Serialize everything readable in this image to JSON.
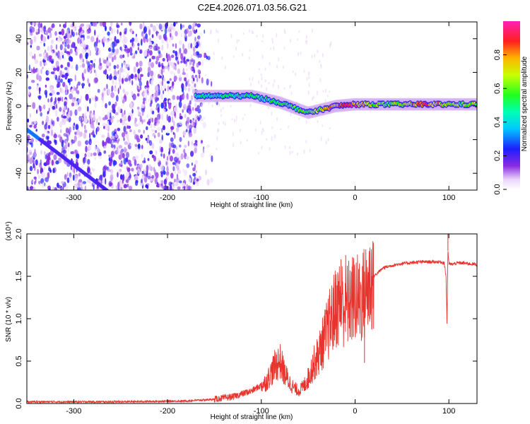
{
  "page_title": "C2E4.2026.071.03.56.G21",
  "chart_data": [
    {
      "type": "heatmap",
      "title": "C2E4.2026.071.03.56.G21",
      "xlabel": "Height of straight line (km)",
      "ylabel": "Frequency (Hz)",
      "xlim": [
        -350,
        130
      ],
      "ylim": [
        -50,
        50
      ],
      "xticks": [
        -300,
        -200,
        -100,
        0,
        100
      ],
      "yticks": [
        -40,
        -20,
        0,
        20,
        40
      ],
      "colorbar": {
        "label": "Normalized spectral amplitude",
        "range": [
          0.0,
          1.0
        ],
        "ticks": [
          "0.0",
          "0.2",
          "0.4",
          "0.6",
          "0.8"
        ]
      },
      "noise_region_x": [
        -350,
        -165
      ],
      "ridge": [
        {
          "x": -170,
          "y": 6,
          "amp": 0.45
        },
        {
          "x": -150,
          "y": 6,
          "amp": 0.45
        },
        {
          "x": -130,
          "y": 6,
          "amp": 0.5
        },
        {
          "x": -110,
          "y": 6,
          "amp": 0.5
        },
        {
          "x": -95,
          "y": 4,
          "amp": 0.5
        },
        {
          "x": -80,
          "y": 2,
          "amp": 0.55
        },
        {
          "x": -65,
          "y": -1,
          "amp": 0.55
        },
        {
          "x": -50,
          "y": -4,
          "amp": 0.6
        },
        {
          "x": -35,
          "y": -2,
          "amp": 0.65
        },
        {
          "x": -20,
          "y": 0,
          "amp": 0.85
        },
        {
          "x": 0,
          "y": 1,
          "amp": 0.9
        },
        {
          "x": 20,
          "y": 1,
          "amp": 0.6
        },
        {
          "x": 50,
          "y": 1,
          "amp": 0.6
        },
        {
          "x": 75,
          "y": 1,
          "amp": 0.95
        },
        {
          "x": 100,
          "y": 1,
          "amp": 0.6
        },
        {
          "x": 130,
          "y": 1,
          "amp": 0.6
        }
      ],
      "diagonal_streak": {
        "from": [
          -350,
          -14
        ],
        "to": [
          -265,
          -50
        ]
      }
    },
    {
      "type": "line",
      "xlabel": "Height of straight line (km)",
      "ylabel": "SNR (10 * v/v)",
      "exponent_label": "(x10⁴)",
      "xlim": [
        -350,
        130
      ],
      "ylim": [
        0.0,
        2.0
      ],
      "xticks": [
        -300,
        -200,
        -100,
        0,
        100
      ],
      "yticks": [
        "0.0",
        "0.5",
        "1.0",
        "1.5",
        "2.0"
      ],
      "series": [
        {
          "name": "SNR",
          "color": "#e8342e",
          "x": [
            -350,
            -250,
            -180,
            -150,
            -130,
            -110,
            -95,
            -85,
            -80,
            -75,
            -70,
            -65,
            -60,
            -55,
            -50,
            -45,
            -40,
            -35,
            -30,
            -25,
            -20,
            -15,
            -10,
            -5,
            0,
            5,
            10,
            15,
            20,
            25,
            30,
            40,
            50,
            60,
            70,
            80,
            90,
            95,
            97,
            98,
            99,
            100,
            103,
            110,
            120,
            130
          ],
          "y": [
            0.02,
            0.02,
            0.03,
            0.05,
            0.08,
            0.15,
            0.25,
            0.45,
            0.5,
            0.35,
            0.25,
            0.18,
            0.15,
            0.2,
            0.3,
            0.45,
            0.55,
            0.7,
            0.85,
            1.0,
            1.15,
            1.2,
            1.15,
            1.2,
            1.25,
            1.2,
            1.3,
            1.4,
            1.5,
            1.55,
            1.6,
            1.63,
            1.65,
            1.66,
            1.67,
            1.67,
            1.67,
            1.66,
            1.5,
            0.95,
            1.8,
            1.65,
            1.64,
            1.66,
            1.65,
            1.64
          ],
          "spikes": [
            {
              "x": -10,
              "y": 1.75
            },
            {
              "x": -15,
              "y": 1.7
            },
            {
              "x": 10,
              "y": 0.48
            },
            {
              "x": 99,
              "y": 2.08
            }
          ]
        }
      ]
    }
  ]
}
